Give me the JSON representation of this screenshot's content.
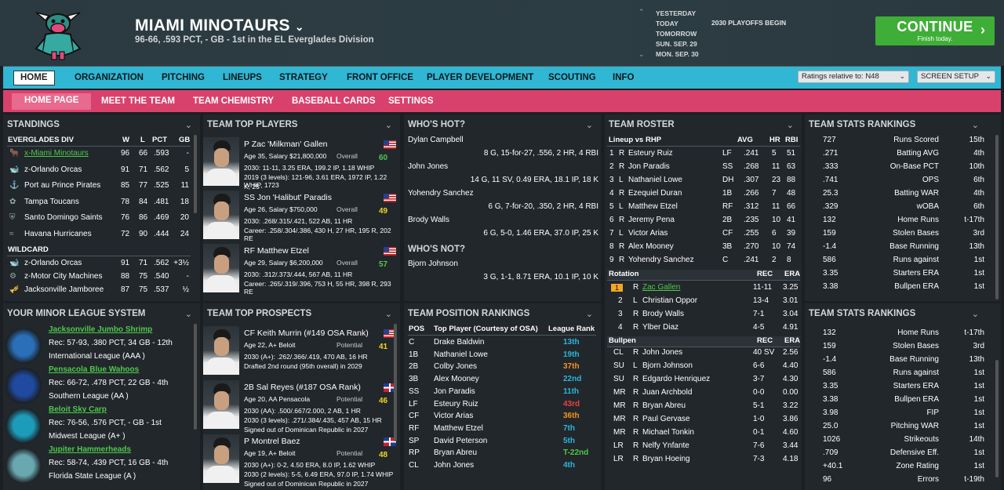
{
  "header": {
    "team": "MIAMI MINOTAURS",
    "record": "96-66, .593 PCT, - GB - 1st in the EL Everglades Division",
    "dates": [
      "YESTERDAY",
      "TODAY",
      "TOMORROW",
      "SUN. SEP. 29",
      "MON. SEP. 30"
    ],
    "event": "2030 PLAYOFFS BEGIN",
    "continue_label": "CONTINUE",
    "continue_sub": "Finish today."
  },
  "nav1": {
    "items": [
      "HOME",
      "ORGANIZATION",
      "PITCHING",
      "LINEUPS",
      "STRATEGY",
      "FRONT OFFICE",
      "PLAYER DEVELOPMENT",
      "SCOUTING",
      "INFO"
    ],
    "ratings": "Ratings relative to: N48",
    "screen": "SCREEN SETUP"
  },
  "nav2": {
    "items": [
      "HOME PAGE",
      "MEET THE TEAM",
      "TEAM CHEMISTRY",
      "BASEBALL CARDS",
      "SETTINGS"
    ]
  },
  "standings": {
    "title": "STANDINGS",
    "div_header": [
      "EVERGLADES DIV",
      "W",
      "L",
      "PCT",
      "GB"
    ],
    "div_rows": [
      [
        "x-Miami Minotaurs",
        "96",
        "66",
        ".593",
        "-"
      ],
      [
        "z-Orlando Orcas",
        "91",
        "71",
        ".562",
        "5"
      ],
      [
        "Port au Prince Pirates",
        "85",
        "77",
        ".525",
        "11"
      ],
      [
        "Tampa Toucans",
        "78",
        "84",
        ".481",
        "18"
      ],
      [
        "Santo Domingo Saints",
        "76",
        "86",
        ".469",
        "20"
      ],
      [
        "Havana Hurricanes",
        "72",
        "90",
        ".444",
        "24"
      ]
    ],
    "wc_header": "WILDCARD",
    "wc_rows": [
      [
        "z-Orlando Orcas",
        "91",
        "71",
        ".562",
        "+3½"
      ],
      [
        "z-Motor City Machines",
        "88",
        "75",
        ".540",
        "-"
      ],
      [
        "Jacksonville Jamboree",
        "87",
        "75",
        ".537",
        "½"
      ]
    ]
  },
  "minor": {
    "title": "YOUR MINOR LEAGUE SYSTEM",
    "teams": [
      {
        "name": "Jacksonville Jumbo Shrimp",
        "rec": "Rec: 57-93, .380 PCT, 34 GB - 12th",
        "league": "International League (AAA )"
      },
      {
        "name": "Pensacola Blue Wahoos",
        "rec": "Rec: 66-72, .478 PCT, 22 GB - 4th",
        "league": "Southern League (AA )"
      },
      {
        "name": "Beloit Sky Carp",
        "rec": "Rec: 76-56, .576 PCT, - GB - 1st",
        "league": "Midwest League (A+ )"
      },
      {
        "name": "Jupiter Hammerheads",
        "rec": "Rec: 58-74, .439 PCT, 16 GB - 4th",
        "league": "Florida State League (A )"
      }
    ]
  },
  "top_players": {
    "title": "TEAM TOP PLAYERS",
    "players": [
      {
        "name": "P Zac 'Milkman' Gallen",
        "info": "Age 35, Salary $21,800,000",
        "label": "Overall",
        "value": "60",
        "line1": "2030: 11-11, 3.25 ERA, 199.2 IP, 1.18 WHIP",
        "line2": "2019 (3 levels): 121-96, 3.61 ERA, 1972 IP, 1.22 WHIP, 1723",
        "line3": "K, 25"
      },
      {
        "name": "SS Jon 'Halibut' Paradis",
        "info": "Age 26, Salary $750,000",
        "label": "Overall",
        "value": "49",
        "line1": "2030: .268/.315/.421, 522 AB, 11 HR",
        "line2": "Career: .258/.304/.386, 430 H, 27 HR, 195 R, 202 RE",
        "line3": ""
      },
      {
        "name": "RF Matthew Etzel",
        "info": "Age 29, Salary $6,200,000",
        "label": "Overall",
        "value": "57",
        "line1": "2030: .312/.373/.444, 567 AB, 11 HR",
        "line2": "Career: .265/.319/.396, 753 H, 55 HR, 398 R, 293 RE",
        "line3": ""
      }
    ]
  },
  "prospects": {
    "title": "TEAM TOP PROSPECTS",
    "players": [
      {
        "name": "CF Keith Murrin (#149 OSA Rank)",
        "info": "Age 22, A+ Beloit",
        "label": "Potential",
        "value": "41",
        "line1": "2030 (A+): .262/.366/.419, 470 AB, 16 HR",
        "line2": "Drafted 2nd round (95th overall) in 2029"
      },
      {
        "name": "2B Sal Reyes (#187 OSA Rank)",
        "info": "Age 20, AA Pensacola",
        "label": "Potential",
        "value": "46",
        "line1": "2030 (AA): .500/.667/2.000, 2 AB, 1 HR",
        "line2": "2030 (3 levels): .271/.384/.435, 457 AB, 15 HR",
        "line3": "Signed out of Dominican Republic in 2027"
      },
      {
        "name": "P Montrel Baez",
        "info": "Age 19, A+ Beloit",
        "label": "Potential",
        "value": "48",
        "line1": "2030 (A+): 0-2, 4.50 ERA, 8.0 IP, 1.62 WHIP",
        "line2": "2030 (2 levels): 5-5, 6.49 ERA, 97.0 IP, 1.74 WHIP",
        "line3": "Signed out of Dominican Republic in 2027"
      }
    ]
  },
  "hot": {
    "title": "WHO'S HOT?",
    "players": [
      {
        "name": "Dylan Campbell",
        "stats": "8 G, 15-for-27, .556, 2 HR, 4 RBI"
      },
      {
        "name": "John Jones",
        "stats": "14 G, 11 SV, 0.49 ERA, 18.1 IP, 18 K"
      },
      {
        "name": "Yohendry Sanchez",
        "stats": "6 G, 7-for-20, .350, 2 HR, 4 RBI"
      },
      {
        "name": "Brody Walls",
        "stats": "6 G, 5-0, 1.46 ERA, 37.0 IP, 25 K"
      }
    ],
    "not_title": "WHO'S NOT?",
    "not_players": [
      {
        "name": "Bjorn Johnson",
        "stats": "3 G, 1-1, 8.71 ERA, 10.1 IP, 10 K"
      }
    ]
  },
  "pos_rank": {
    "title": "TEAM POSITION RANKINGS",
    "header": [
      "POS",
      "Top Player (Courtesy of OSA)",
      "League Rank"
    ],
    "rows": [
      [
        "C",
        "Drake Baldwin",
        "13th",
        "teal"
      ],
      [
        "1B",
        "Nathaniel Lowe",
        "19th",
        "teal"
      ],
      [
        "2B",
        "Colby Jones",
        "37th",
        "orange"
      ],
      [
        "3B",
        "Alex Mooney",
        "22nd",
        "teal"
      ],
      [
        "SS",
        "Jon Paradis",
        "11th",
        "teal"
      ],
      [
        "LF",
        "Esteury Ruiz",
        "43rd",
        "red"
      ],
      [
        "CF",
        "Victor Arias",
        "36th",
        "orange"
      ],
      [
        "RF",
        "Matthew Etzel",
        "7th",
        "teal"
      ],
      [
        "SP",
        "David Peterson",
        "5th",
        "teal"
      ],
      [
        "RP",
        "Bryan Abreu",
        "T-22nd",
        "green"
      ],
      [
        "CL",
        "John Jones",
        "4th",
        "teal"
      ]
    ]
  },
  "roster": {
    "title": "TEAM ROSTER",
    "lineup_header": [
      "Lineup vs RHP",
      "AVG",
      "HR",
      "RBI"
    ],
    "lineup": [
      [
        "1",
        "R",
        "Esteury Ruiz",
        "LF",
        ".241",
        "5",
        "51"
      ],
      [
        "2",
        "R",
        "Jon Paradis",
        "SS",
        ".268",
        "11",
        "63"
      ],
      [
        "3",
        "L",
        "Nathaniel Lowe",
        "DH",
        ".307",
        "23",
        "88"
      ],
      [
        "4",
        "R",
        "Ezequiel Duran",
        "1B",
        ".266",
        "7",
        "48"
      ],
      [
        "5",
        "L",
        "Matthew Etzel",
        "RF",
        ".312",
        "11",
        "66"
      ],
      [
        "6",
        "R",
        "Jeremy Pena",
        "2B",
        ".235",
        "10",
        "41"
      ],
      [
        "7",
        "L",
        "Victor Arias",
        "CF",
        ".255",
        "6",
        "39"
      ],
      [
        "8",
        "R",
        "Alex Mooney",
        "3B",
        ".270",
        "10",
        "74"
      ],
      [
        "9",
        "R",
        "Yohendry Sanchez",
        "C",
        ".241",
        "2",
        "8"
      ]
    ],
    "rot_header": [
      "Rotation",
      "REC",
      "ERA"
    ],
    "rotation": [
      [
        "1",
        "R",
        "Zac Gallen",
        "11-11",
        "3.25"
      ],
      [
        "2",
        "L",
        "Christian Oppor",
        "13-4",
        "3.01"
      ],
      [
        "3",
        "R",
        "Brody Walls",
        "7-1",
        "3.04"
      ],
      [
        "4",
        "R",
        "Ylber Diaz",
        "4-5",
        "4.91"
      ]
    ],
    "bp_header": [
      "Bullpen",
      "REC",
      "ERA"
    ],
    "bullpen": [
      [
        "CL",
        "R",
        "John Jones",
        "40 SV",
        "2.56"
      ],
      [
        "SU",
        "L",
        "Bjorn Johnson",
        "6-6",
        "4.40"
      ],
      [
        "SU",
        "R",
        "Edgardo Henriquez",
        "3-7",
        "4.30"
      ],
      [
        "MR",
        "R",
        "Juan Archbold",
        "0-0",
        "0.00"
      ],
      [
        "MR",
        "R",
        "Bryan Abreu",
        "5-1",
        "3.22"
      ],
      [
        "MR",
        "R",
        "Paul Gervase",
        "1-0",
        "3.86"
      ],
      [
        "MR",
        "R",
        "Michael Tonkin",
        "0-1",
        "4.60"
      ],
      [
        "LR",
        "R",
        "Nelfy Ynfante",
        "7-6",
        "3.44"
      ],
      [
        "LR",
        "R",
        "Bryan Hoeing",
        "7-3",
        "4.18"
      ]
    ]
  },
  "stats1": {
    "title": "TEAM STATS RANKINGS",
    "rows": [
      [
        "727",
        "Runs Scored",
        "15th"
      ],
      [
        ".271",
        "Batting AVG",
        "4th"
      ],
      [
        ".333",
        "On-Base PCT",
        "10th"
      ],
      [
        ".741",
        "OPS",
        "6th"
      ],
      [
        "25.3",
        "Batting WAR",
        "4th"
      ],
      [
        ".329",
        "wOBA",
        "6th"
      ],
      [
        "132",
        "Home Runs",
        "t-17th"
      ],
      [
        "159",
        "Stolen Bases",
        "3rd"
      ],
      [
        "-1.4",
        "Base Running",
        "13th"
      ],
      [
        "586",
        "Runs against",
        "1st"
      ],
      [
        "3.35",
        "Starters ERA",
        "1st"
      ],
      [
        "3.38",
        "Bullpen ERA",
        "1st"
      ]
    ]
  },
  "stats2": {
    "title": "TEAM STATS RANKINGS",
    "rows": [
      [
        "132",
        "Home Runs",
        "t-17th"
      ],
      [
        "159",
        "Stolen Bases",
        "3rd"
      ],
      [
        "-1.4",
        "Base Running",
        "13th"
      ],
      [
        "586",
        "Runs against",
        "1st"
      ],
      [
        "3.35",
        "Starters ERA",
        "1st"
      ],
      [
        "3.38",
        "Bullpen ERA",
        "1st"
      ],
      [
        "3.98",
        "FIP",
        "1st"
      ],
      [
        "25.0",
        "Pitching WAR",
        "1st"
      ],
      [
        "1026",
        "Strikeouts",
        "14th"
      ],
      [
        ".709",
        "Defensive Eff.",
        "1st"
      ],
      [
        "+40.1",
        "Zone Rating",
        "1st"
      ],
      [
        "96",
        "Errors",
        "t-19th"
      ]
    ]
  }
}
